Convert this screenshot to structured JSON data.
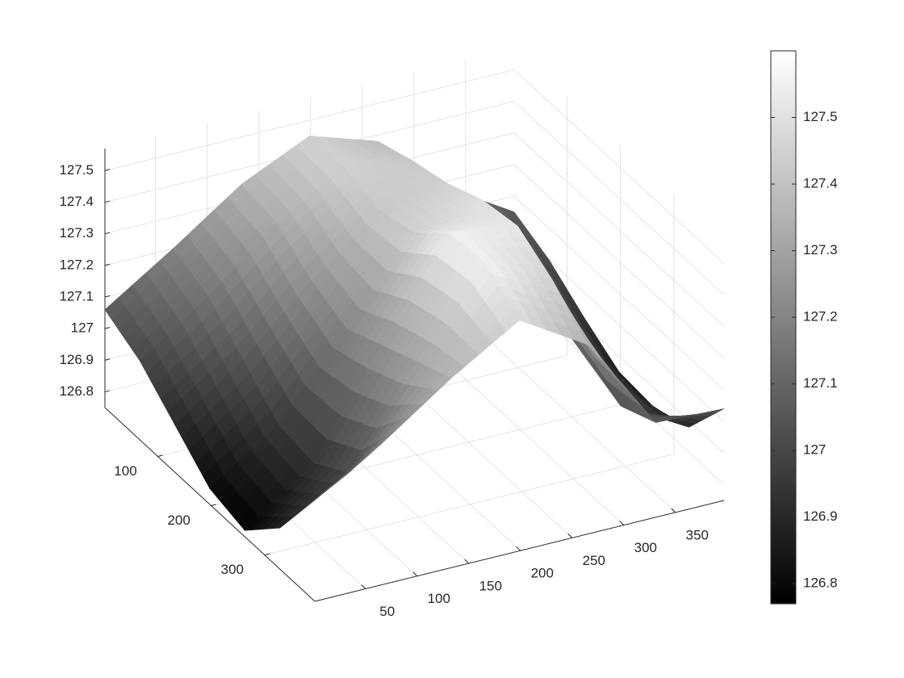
{
  "chart_data": {
    "type": "surface",
    "x": [
      1,
      67,
      133,
      199,
      265,
      331,
      397
    ],
    "y": [
      1,
      66.5,
      132,
      197.5,
      263,
      328.5,
      394
    ],
    "z": [
      [
        127.06,
        127.2,
        127.35,
        127.45,
        127.38,
        127.18,
        127.05
      ],
      [
        127.0,
        127.15,
        127.33,
        127.45,
        127.42,
        127.2,
        127.0
      ],
      [
        126.9,
        127.05,
        127.25,
        127.42,
        127.45,
        127.15,
        126.92
      ],
      [
        126.8,
        126.95,
        127.2,
        127.45,
        127.5,
        127.1,
        126.85
      ],
      [
        126.77,
        126.93,
        127.25,
        127.55,
        127.52,
        127.05,
        126.84
      ],
      [
        126.88,
        127.0,
        127.3,
        127.56,
        127.45,
        127.0,
        126.88
      ],
      [
        127.07,
        127.2,
        127.35,
        127.48,
        127.35,
        127.05,
        127.04
      ]
    ],
    "xlim": [
      1,
      397
    ],
    "ylim": [
      1,
      394
    ],
    "zlim": [
      126.75,
      127.57
    ],
    "xticks": [
      50,
      100,
      150,
      200,
      250,
      300,
      350
    ],
    "yticks": [
      100,
      200,
      300
    ],
    "zticks": [
      126.8,
      126.9,
      127,
      127.1,
      127.2,
      127.3,
      127.4,
      127.5
    ],
    "clim": [
      126.77,
      127.6
    ],
    "cticks": [
      126.8,
      126.9,
      127,
      127.1,
      127.2,
      127.3,
      127.4,
      127.5
    ],
    "colormap": "gray",
    "grid": true
  }
}
